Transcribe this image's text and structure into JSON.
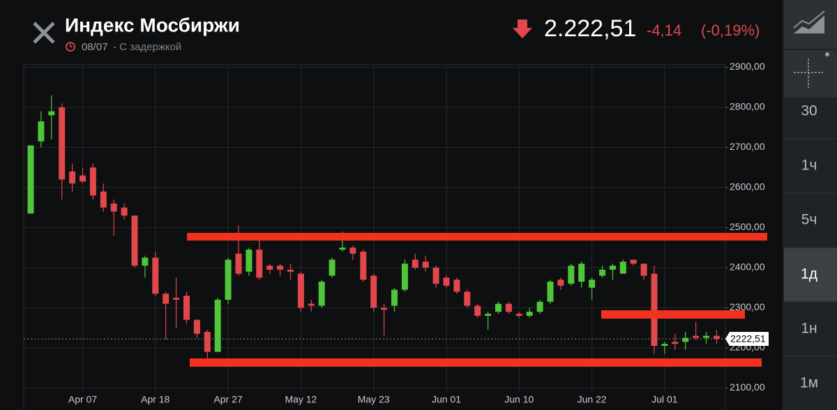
{
  "header": {
    "title": "Индекс Мосбиржи",
    "date": "08/07",
    "delay": "- С задержкой",
    "price": "2.222,51",
    "change": "-4,14",
    "change_pct": "(-0,19%)"
  },
  "sidebar": {
    "timeframes": [
      "30",
      "1ч",
      "5ч",
      "1д",
      "1н",
      "1м"
    ],
    "selected": 3
  },
  "chart_data": {
    "type": "candlestick",
    "categories": [
      null,
      null,
      null,
      null,
      null,
      "Apr 07",
      null,
      null,
      null,
      null,
      null,
      null,
      "Apr 18",
      null,
      null,
      null,
      null,
      null,
      null,
      "Apr 27",
      null,
      null,
      null,
      null,
      null,
      null,
      "May 12",
      null,
      null,
      null,
      null,
      null,
      null,
      "May 23",
      null,
      null,
      null,
      null,
      null,
      null,
      "Jun 01",
      null,
      null,
      null,
      null,
      null,
      null,
      "Jun 10",
      null,
      null,
      null,
      null,
      null,
      null,
      "Jun 22",
      null,
      null,
      null,
      null,
      null,
      null,
      "Jul 01",
      null,
      null,
      null,
      null,
      null
    ],
    "open": [
      2535,
      2715,
      2780,
      2800,
      2640,
      2630,
      2650,
      2590,
      2560,
      2550,
      2530,
      2405,
      2425,
      2335,
      2325,
      2330,
      2270,
      2240,
      2190,
      2320,
      2435,
      2390,
      2445,
      2405,
      2405,
      2395,
      2385,
      2310,
      2305,
      2380,
      2445,
      2450,
      2440,
      2380,
      2300,
      2305,
      2345,
      2420,
      2415,
      2400,
      2375,
      2370,
      2340,
      2305,
      2280,
      2290,
      2310,
      2285,
      2280,
      2290,
      2315,
      2370,
      2360,
      2365,
      2350,
      2380,
      2395,
      2385,
      2420,
      2410,
      2385,
      2205,
      2215,
      2215,
      2230,
      2225,
      2230
    ],
    "high": [
      2705,
      2790,
      2830,
      2810,
      2660,
      2650,
      2660,
      2610,
      2570,
      2560,
      2530,
      2430,
      2440,
      2340,
      2375,
      2340,
      2270,
      2245,
      2325,
      2425,
      2505,
      2450,
      2470,
      2410,
      2410,
      2410,
      2390,
      2320,
      2370,
      2425,
      2490,
      2455,
      2445,
      2385,
      2310,
      2350,
      2420,
      2435,
      2430,
      2405,
      2380,
      2375,
      2345,
      2310,
      2290,
      2315,
      2315,
      2290,
      2300,
      2320,
      2370,
      2375,
      2410,
      2415,
      2375,
      2405,
      2410,
      2420,
      2420,
      2410,
      2405,
      2215,
      2235,
      2240,
      2265,
      2240,
      2245
    ],
    "low": [
      2535,
      2700,
      2720,
      2570,
      2590,
      2610,
      2570,
      2540,
      2480,
      2520,
      2400,
      2375,
      2330,
      2220,
      2250,
      2260,
      2225,
      2170,
      2190,
      2310,
      2380,
      2380,
      2370,
      2385,
      2380,
      2370,
      2290,
      2290,
      2300,
      2375,
      2440,
      2420,
      2365,
      2290,
      2230,
      2290,
      2340,
      2395,
      2390,
      2350,
      2350,
      2335,
      2300,
      2275,
      2245,
      2285,
      2285,
      2275,
      2275,
      2285,
      2310,
      2345,
      2355,
      2350,
      2320,
      2375,
      2370,
      2385,
      2405,
      2370,
      2185,
      2185,
      2195,
      2195,
      2220,
      2210,
      2210
    ],
    "close": [
      2705,
      2765,
      2790,
      2620,
      2610,
      2615,
      2580,
      2550,
      2540,
      2530,
      2405,
      2425,
      2335,
      2310,
      2320,
      2270,
      2235,
      2190,
      2320,
      2420,
      2385,
      2445,
      2375,
      2395,
      2395,
      2390,
      2300,
      2305,
      2365,
      2420,
      2450,
      2435,
      2370,
      2300,
      2295,
      2345,
      2410,
      2400,
      2400,
      2360,
      2355,
      2340,
      2305,
      2280,
      2285,
      2310,
      2290,
      2280,
      2290,
      2315,
      2365,
      2355,
      2405,
      2410,
      2370,
      2395,
      2405,
      2415,
      2410,
      2380,
      2205,
      2210,
      2210,
      2225,
      2225,
      2230,
      2222.51
    ],
    "up_color": "#4fc63a",
    "down_color": "#e2474c",
    "ylim": [
      2045,
      2906
    ],
    "yticks": [
      {
        "value": 2100,
        "label": "2100,00"
      },
      {
        "value": 2200,
        "label": "2200,00"
      },
      {
        "value": 2300,
        "label": "2300,00"
      },
      {
        "value": 2400,
        "label": "2400,00"
      },
      {
        "value": 2500,
        "label": "2500,00"
      },
      {
        "value": 2600,
        "label": "2600,00"
      },
      {
        "value": 2700,
        "label": "2700,00"
      },
      {
        "value": 2800,
        "label": "2800,00"
      },
      {
        "value": 2900,
        "label": "2900,00"
      }
    ],
    "last_price": {
      "value": 2222.51,
      "label": "2222,51"
    },
    "grid": true
  }
}
